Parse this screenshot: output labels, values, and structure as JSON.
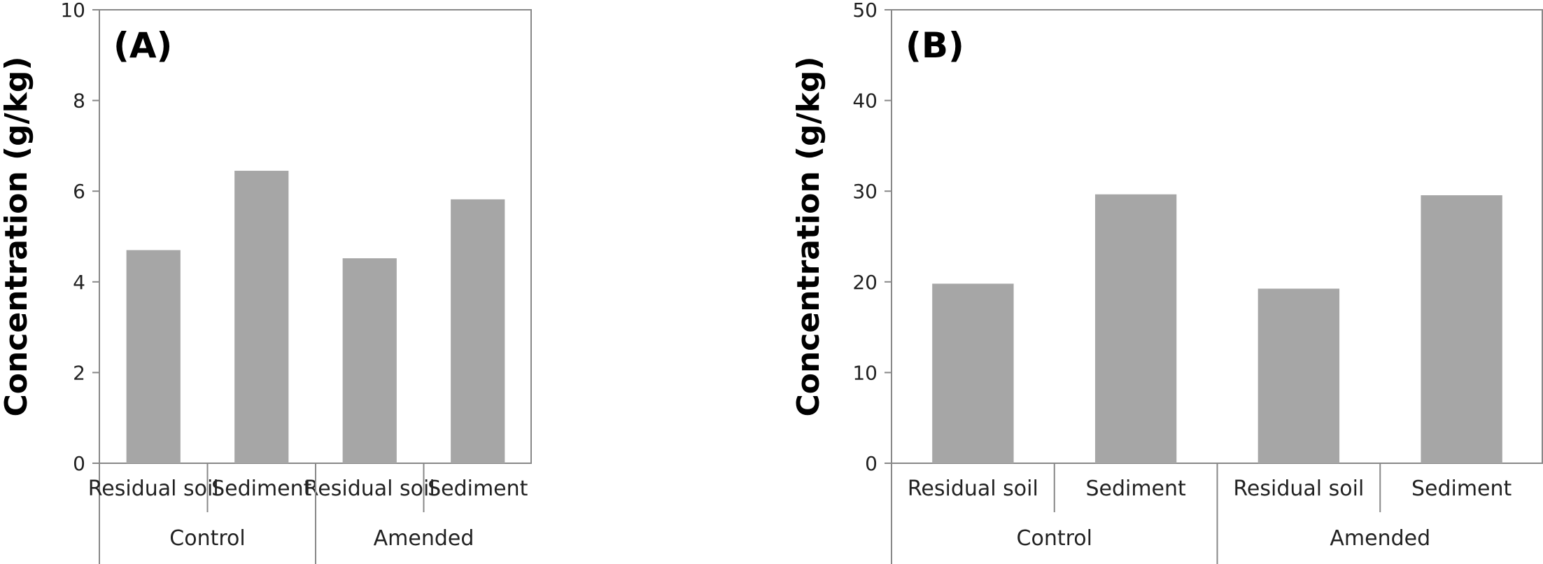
{
  "chart_data": [
    {
      "type": "bar",
      "panel_label": "(A)",
      "ylabel": "Concentration  (g/kg)",
      "ylim": [
        0,
        10
      ],
      "yticks": [
        0,
        2,
        4,
        6,
        8,
        10
      ],
      "categories": [
        "Residual soil",
        "Sediment",
        "Residual soil",
        "Sediment"
      ],
      "groups": [
        {
          "label": "Control",
          "categories": [
            "Residual soil",
            "Sediment"
          ]
        },
        {
          "label": "Amended",
          "categories": [
            "Residual soil",
            "Sediment"
          ]
        }
      ],
      "values": [
        4.7,
        6.45,
        4.52,
        5.82
      ],
      "bar_color": "#a6a6a6",
      "grid": false
    },
    {
      "type": "bar",
      "panel_label": "(B)",
      "ylabel": "Concentration  (g/kg)",
      "ylim": [
        0,
        50
      ],
      "yticks": [
        0,
        10,
        20,
        30,
        40,
        50
      ],
      "categories": [
        "Residual soil",
        "Sediment",
        "Residual soil",
        "Sediment"
      ],
      "groups": [
        {
          "label": "Control",
          "categories": [
            "Residual soil",
            "Sediment"
          ]
        },
        {
          "label": "Amended",
          "categories": [
            "Residual soil",
            "Sediment"
          ]
        }
      ],
      "values": [
        19.8,
        29.65,
        19.25,
        29.55
      ],
      "bar_color": "#a6a6a6",
      "grid": false
    }
  ]
}
